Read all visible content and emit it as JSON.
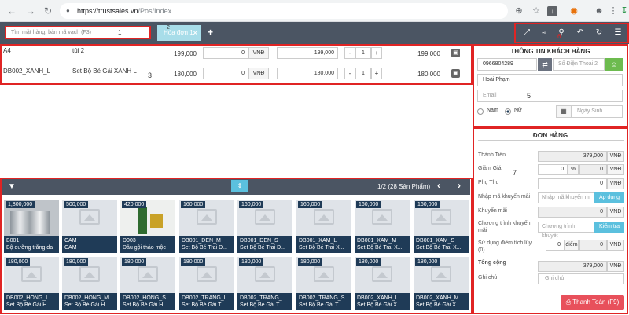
{
  "browser": {
    "url_domain": "https://trustsales.vn",
    "url_path": "/Pos/Index"
  },
  "header": {
    "search_placeholder": "Tìm mặt hàng, bản mã vạch (F3)",
    "annotation_1": "1",
    "annotation_2": "2",
    "tab_label": "Hóa đơn 1",
    "add_tab": "+",
    "annotation_toolbar": "6"
  },
  "cart": {
    "annotation": "3",
    "rows": [
      {
        "code": "A4",
        "name": "túi 2",
        "price": "199,000",
        "discount": "0",
        "unit": "VNĐ",
        "sale_price": "199,000",
        "qty": "1",
        "total": "199,000"
      },
      {
        "code": "DB002_XANH_L",
        "name": "Set Bộ Bé Gái XANH L",
        "price": "180,000",
        "discount": "0",
        "unit": "VNĐ",
        "sale_price": "180,000",
        "qty": "1",
        "total": "180,000"
      }
    ]
  },
  "customer": {
    "title": "THÔNG TIN KHÁCH HÀNG",
    "phone": "0966804289",
    "phone2_placeholder": "Số Điện Thoại 2",
    "name": "Hoài Phạm",
    "email_placeholder": "Email",
    "annotation": "5",
    "gender_male": "Nam",
    "gender_female": "Nữ",
    "birthday_placeholder": "Ngày Sinh"
  },
  "order": {
    "title": "ĐƠN HÀNG",
    "annotation": "7",
    "subtotal_label": "Thành Tiền",
    "subtotal": "379,000",
    "discount_label": "Giảm Giá",
    "discount_pct": "0",
    "pct_sign": "%",
    "discount_amt": "0",
    "surcharge_label": "Phụ Thu",
    "surcharge": "0",
    "promo_code_label": "Nhập mã khuyến mãi",
    "promo_code_placeholder": "Nhập mã khuyến m",
    "apply_button": "Áp dụng",
    "promo_label": "Khuyến mãi",
    "promo": "0",
    "program_label_1": "Chương trình khuyến",
    "program_label_2": "mãi",
    "program_placeholder": "Chương trình khuyết",
    "check_button": "Kiểm tra",
    "points_label_1": "Sử dụng điểm tích lũy",
    "points_label_2": "(0)",
    "points": "0",
    "points_unit": "điểm",
    "points_amt": "0",
    "total_label": "Tổng cộng",
    "total": "379,000",
    "note_label": "Ghi chú",
    "note_placeholder": "Ghi chú",
    "vnd": "VNĐ",
    "pay_button": "Thanh Toán (F9)"
  },
  "products": {
    "annotation": "4",
    "pagination": "1/2 (28 Sản Phẩm)",
    "items": [
      {
        "price": "1,800,000",
        "code": "B001",
        "name": "Bộ dưỡng trắng da"
      },
      {
        "price": "500,000",
        "code": "CAM",
        "name": "CAM"
      },
      {
        "price": "420,000",
        "code": "D003",
        "name": "Dầu gội thảo mộc"
      },
      {
        "price": "160,000",
        "code": "DB001_DEN_M",
        "name": "Set Bộ Bé Trai D..."
      },
      {
        "price": "160,000",
        "code": "DB001_DEN_S",
        "name": "Set Bộ Bé Trai D..."
      },
      {
        "price": "160,000",
        "code": "DB001_XAM_L",
        "name": "Set Bộ Bé Trai X..."
      },
      {
        "price": "160,000",
        "code": "DB001_XAM_M",
        "name": "Set Bộ Bé Trai X..."
      },
      {
        "price": "160,000",
        "code": "DB001_XAM_S",
        "name": "Set Bộ Bé Trai X..."
      },
      {
        "price": "180,000",
        "code": "DB002_HONG_L",
        "name": "Set Bộ Bé Gái H..."
      },
      {
        "price": "180,000",
        "code": "DB002_HONG_M",
        "name": "Set Bộ Bé Gái H..."
      },
      {
        "price": "180,000",
        "code": "DB002_HONG_S",
        "name": "Set Bộ Bé Gái H..."
      },
      {
        "price": "180,000",
        "code": "DB002_TRANG_L",
        "name": "Set Bộ Bé Gái T..."
      },
      {
        "price": "180,000",
        "code": "DB002_TRANG_...",
        "name": "Set Bộ Bé Gái T..."
      },
      {
        "price": "180,000",
        "code": "DB002_TRANG_S",
        "name": "Set Bộ Bé Gái T..."
      },
      {
        "price": "180,000",
        "code": "DB002_XANH_L",
        "name": "Set Bộ Bé Gái X..."
      },
      {
        "price": "180,000",
        "code": "DB002_XANH_M",
        "name": "Set Bộ Bé Gái X..."
      }
    ]
  }
}
